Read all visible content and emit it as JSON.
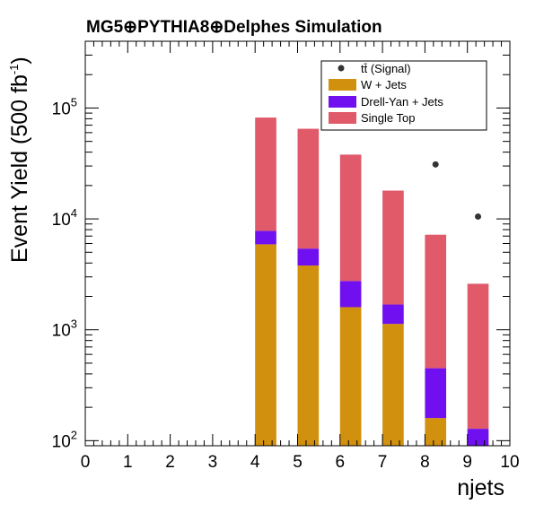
{
  "chart_data": {
    "type": "bar",
    "stacked": true,
    "title": "MG5⊕PYTHIA8⊕Delphes Simulation",
    "xlabel": "njets",
    "ylabel": "Event Yield (500 fb",
    "ylabel_superscript": "-1",
    "ylabel_suffix": ")",
    "y_log_scale": true,
    "xlim": [
      0,
      10
    ],
    "ylim": [
      90,
      400000
    ],
    "x_ticks": [
      "0",
      "1",
      "2",
      "3",
      "4",
      "5",
      "6",
      "7",
      "8",
      "9",
      "10"
    ],
    "y_ticks": [
      {
        "value": 100,
        "base": "10",
        "exp": "2"
      },
      {
        "value": 1000,
        "base": "10",
        "exp": "3"
      },
      {
        "value": 10000,
        "base": "10",
        "exp": "4"
      },
      {
        "value": 100000,
        "base": "10",
        "exp": "5"
      }
    ],
    "bin_starts": [
      4,
      5,
      6,
      7,
      8,
      9
    ],
    "bin_width": 0.5,
    "series": [
      {
        "name": "W + Jets",
        "color": "#d1900d",
        "values": [
          5900,
          3800,
          1600,
          1130,
          160,
          0
        ]
      },
      {
        "name": "Drell-Yan + Jets",
        "color": "#7010f0",
        "values": [
          1900,
          1600,
          1150,
          560,
          290,
          128
        ]
      },
      {
        "name": "Single Top",
        "color": "#e05a6a",
        "values": [
          74200,
          59600,
          35250,
          16310,
          6750,
          2472
        ]
      }
    ],
    "signal": {
      "name": "tt̄ (Signal)",
      "color": "#333333",
      "points": [
        {
          "x": 8.25,
          "y": 31000
        },
        {
          "x": 9.25,
          "y": 10500
        }
      ]
    },
    "legend_placement": "top-right",
    "grid": false
  }
}
